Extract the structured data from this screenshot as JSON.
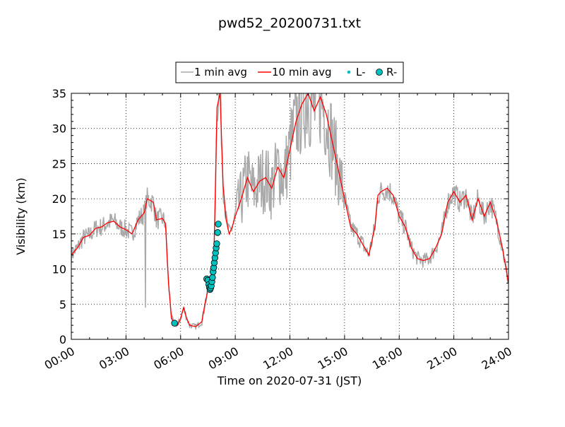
{
  "chart_data": {
    "type": "line",
    "title": "pwd52_20200731.txt",
    "xlabel": "Time on 2020-07-31 (JST)",
    "ylabel": "Visibility (km)",
    "xlim": [
      "00:00",
      "24:00"
    ],
    "ylim": [
      0,
      35
    ],
    "x_ticks": [
      "00:00",
      "03:00",
      "06:00",
      "09:00",
      "12:00",
      "15:00",
      "18:00",
      "21:00",
      "24:00"
    ],
    "y_ticks": [
      "0",
      "5",
      "10",
      "15",
      "20",
      "25",
      "30",
      "35"
    ],
    "grid": true,
    "legend_position": "top-center",
    "legend": [
      "1 min avg",
      "10 min avg",
      "L-",
      "R-"
    ],
    "series": [
      {
        "name": "10 min avg",
        "color": "#ff0000",
        "points": [
          [
            "00:00",
            12.0
          ],
          [
            "00:20",
            13.0
          ],
          [
            "00:40",
            14.5
          ],
          [
            "01:00",
            14.8
          ],
          [
            "01:20",
            15.8
          ],
          [
            "01:40",
            16.0
          ],
          [
            "02:00",
            16.6
          ],
          [
            "02:20",
            16.8
          ],
          [
            "02:40",
            16.0
          ],
          [
            "03:00",
            15.6
          ],
          [
            "03:20",
            15.0
          ],
          [
            "03:40",
            17.0
          ],
          [
            "04:00",
            18.0
          ],
          [
            "04:10",
            20.0
          ],
          [
            "04:30",
            19.5
          ],
          [
            "04:40",
            17.0
          ],
          [
            "05:00",
            17.2
          ],
          [
            "05:10",
            16.5
          ],
          [
            "05:20",
            8.0
          ],
          [
            "05:30",
            3.0
          ],
          [
            "05:40",
            2.2
          ],
          [
            "05:50",
            2.0
          ],
          [
            "06:00",
            3.0
          ],
          [
            "06:10",
            4.5
          ],
          [
            "06:20",
            3.0
          ],
          [
            "06:30",
            2.0
          ],
          [
            "06:50",
            1.8
          ],
          [
            "07:10",
            2.5
          ],
          [
            "07:20",
            5.0
          ],
          [
            "07:30",
            7.0
          ],
          [
            "07:40",
            8.0
          ],
          [
            "07:50",
            12.0
          ],
          [
            "08:00",
            33.0
          ],
          [
            "08:10",
            35.0
          ],
          [
            "08:20",
            22.0
          ],
          [
            "08:30",
            17.0
          ],
          [
            "08:40",
            15.0
          ],
          [
            "08:50",
            16.0
          ],
          [
            "09:00",
            17.5
          ],
          [
            "09:20",
            20.0
          ],
          [
            "09:40",
            23.0
          ],
          [
            "10:00",
            21.0
          ],
          [
            "10:20",
            22.5
          ],
          [
            "10:40",
            23.0
          ],
          [
            "11:00",
            21.5
          ],
          [
            "11:20",
            24.5
          ],
          [
            "11:40",
            23.0
          ],
          [
            "12:00",
            27.0
          ],
          [
            "12:20",
            31.0
          ],
          [
            "12:40",
            33.5
          ],
          [
            "13:00",
            35.0
          ],
          [
            "13:20",
            32.5
          ],
          [
            "13:40",
            34.5
          ],
          [
            "14:00",
            32.0
          ],
          [
            "14:20",
            28.0
          ],
          [
            "14:40",
            24.0
          ],
          [
            "15:00",
            20.0
          ],
          [
            "15:20",
            16.0
          ],
          [
            "15:40",
            15.0
          ],
          [
            "16:00",
            13.5
          ],
          [
            "16:20",
            12.0
          ],
          [
            "16:40",
            16.0
          ],
          [
            "16:50",
            20.5
          ],
          [
            "17:00",
            21.0
          ],
          [
            "17:20",
            21.5
          ],
          [
            "17:40",
            20.5
          ],
          [
            "18:00",
            17.5
          ],
          [
            "18:20",
            16.0
          ],
          [
            "18:40",
            13.0
          ],
          [
            "19:00",
            11.5
          ],
          [
            "19:20",
            11.2
          ],
          [
            "19:40",
            11.5
          ],
          [
            "20:00",
            13.0
          ],
          [
            "20:20",
            15.0
          ],
          [
            "20:40",
            19.5
          ],
          [
            "21:00",
            21.0
          ],
          [
            "21:20",
            19.5
          ],
          [
            "21:40",
            20.5
          ],
          [
            "22:00",
            17.0
          ],
          [
            "22:20",
            20.0
          ],
          [
            "22:40",
            17.5
          ],
          [
            "23:00",
            19.5
          ],
          [
            "23:20",
            17.0
          ],
          [
            "23:40",
            13.0
          ],
          [
            "24:00",
            8.0
          ]
        ]
      },
      {
        "name": "R-",
        "color": "#00c0c0",
        "points": [
          [
            "05:40",
            2.3
          ],
          [
            "07:26",
            8.6
          ],
          [
            "07:30",
            8.4
          ],
          [
            "07:33",
            7.8
          ],
          [
            "07:35",
            7.4
          ],
          [
            "07:37",
            7.1
          ],
          [
            "07:39",
            7.3
          ],
          [
            "07:41",
            7.6
          ],
          [
            "07:43",
            8.2
          ],
          [
            "07:45",
            8.8
          ],
          [
            "07:47",
            9.6
          ],
          [
            "07:49",
            10.2
          ],
          [
            "07:51",
            10.9
          ],
          [
            "07:53",
            11.6
          ],
          [
            "07:55",
            12.3
          ],
          [
            "07:57",
            13.0
          ],
          [
            "07:59",
            13.6
          ],
          [
            "08:02",
            15.2
          ],
          [
            "08:04",
            16.4
          ]
        ]
      },
      {
        "name": "L-",
        "color": "#00c0c0",
        "points": []
      }
    ]
  }
}
